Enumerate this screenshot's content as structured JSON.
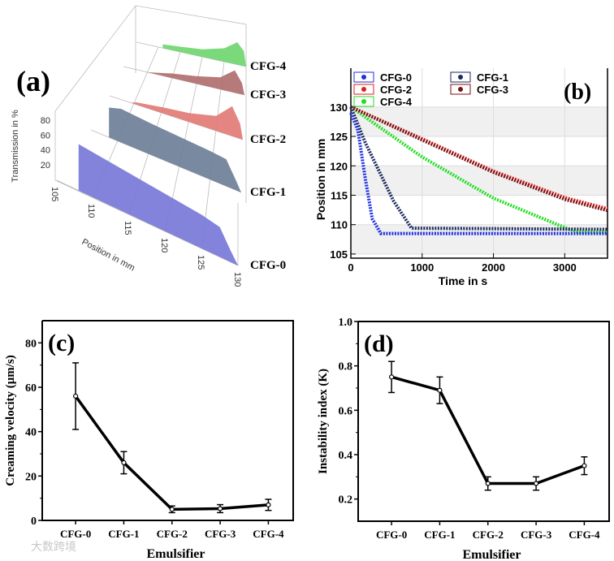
{
  "chart_data": [
    {
      "panel_label": "(a)",
      "type": "area",
      "title": "",
      "xlabel": "Position in mm",
      "ylabel": "Transmission in %",
      "x_ticks": [
        "105",
        "110",
        "115",
        "120",
        "125",
        "130"
      ],
      "y_ticks": [
        "20",
        "40",
        "60",
        "80"
      ],
      "xlim": [
        105,
        130
      ],
      "series": [
        {
          "name": "CFG-0",
          "color": "#7878d8",
          "x": [
            108,
            110,
            115,
            120,
            125,
            127.5,
            129,
            130
          ],
          "values": [
            62,
            60,
            55,
            50,
            45,
            40,
            15,
            0
          ]
        },
        {
          "name": "CFG-1",
          "color": "#6e7f98",
          "x": [
            108,
            110,
            115,
            120,
            125,
            127.5,
            129,
            130
          ],
          "values": [
            40,
            45,
            42,
            40,
            38,
            36,
            15,
            0
          ]
        },
        {
          "name": "CFG-2",
          "color": "#e27b76",
          "x": [
            109,
            110,
            115,
            120,
            125,
            128,
            129.5,
            130
          ],
          "values": [
            0,
            3,
            8,
            12,
            20,
            40,
            20,
            0
          ]
        },
        {
          "name": "CFG-3",
          "color": "#b16f6f",
          "x": [
            110,
            115,
            120,
            125,
            128,
            129.5,
            130
          ],
          "values": [
            0,
            6,
            10,
            16,
            30,
            15,
            0
          ]
        },
        {
          "name": "CFG-4",
          "color": "#6fd66f",
          "x": [
            111,
            115,
            120,
            125,
            128,
            129.5,
            130
          ],
          "values": [
            5,
            7,
            10,
            18,
            30,
            20,
            0
          ]
        }
      ]
    },
    {
      "panel_label": "(b)",
      "type": "scatter",
      "title": "",
      "xlabel": "Time in s",
      "ylabel": "Position in mm",
      "xlim": [
        0,
        3600
      ],
      "ylim": [
        104.3,
        136.6
      ],
      "x_ticks": [
        0,
        1000,
        2000,
        3000
      ],
      "y_ticks": [
        105,
        110,
        115,
        120,
        125,
        130
      ],
      "grid": true,
      "legend": "top",
      "series": [
        {
          "name": "CFG-0",
          "marker": "diamond",
          "color": "#1f2fe0",
          "x": [
            0,
            100,
            200,
            300,
            420,
            3600
          ],
          "values": [
            129,
            126,
            118,
            111,
            108.5,
            108.5
          ]
        },
        {
          "name": "CFG-1",
          "marker": "triangle-up",
          "color": "#1c2b5e",
          "x": [
            0,
            200,
            400,
            600,
            850,
            3600
          ],
          "values": [
            130,
            124,
            119,
            114,
            109.4,
            109.2
          ]
        },
        {
          "name": "CFG-2",
          "marker": "square",
          "color": "#e01c1c",
          "x": [
            0,
            1000,
            2000,
            3000,
            3600
          ],
          "values": [
            130,
            124.6,
            119.1,
            114.6,
            112.7
          ]
        },
        {
          "name": "CFG-3",
          "marker": "triangle-down",
          "color": "#7a1212",
          "x": [
            0,
            1000,
            2000,
            3000,
            3600
          ],
          "values": [
            130,
            124.4,
            118.9,
            114.3,
            112.4
          ]
        },
        {
          "name": "CFG-4",
          "marker": "x",
          "color": "#22dd22",
          "x": [
            0,
            1000,
            2000,
            3000,
            3200,
            3600
          ],
          "values": [
            130,
            121.5,
            114.5,
            109.5,
            108.7,
            108.7
          ]
        }
      ]
    },
    {
      "panel_label": "(c)",
      "type": "line",
      "title": "",
      "xlabel": "Emulsifier",
      "ylabel": "Creaming velocity (μm/s)",
      "categories": [
        "CFG-0",
        "CFG-1",
        "CFG-2",
        "CFG-3",
        "CFG-4"
      ],
      "values": [
        56,
        26,
        5,
        5.3,
        7
      ],
      "errors": [
        15,
        5,
        1.5,
        1.8,
        2.5
      ],
      "ylim": [
        0,
        90
      ],
      "y_ticks": [
        0,
        20,
        40,
        60,
        80
      ],
      "y_tick_labels": [
        "0",
        "20",
        "40",
        "60",
        "80"
      ]
    },
    {
      "panel_label": "(d)",
      "type": "line",
      "title": "",
      "xlabel": "Emulsifier",
      "ylabel": "Instability index (K)",
      "categories": [
        "CFG-0",
        "CFG-1",
        "CFG-2",
        "CFG-3",
        "CFG-4"
      ],
      "values": [
        0.75,
        0.69,
        0.27,
        0.27,
        0.35
      ],
      "errors": [
        0.07,
        0.06,
        0.03,
        0.03,
        0.04
      ],
      "ylim": [
        0.1,
        1.0
      ],
      "y_ticks": [
        0.2,
        0.4,
        0.6,
        0.8,
        1.0
      ],
      "y_tick_labels": [
        "0.2",
        "0.4",
        "0.6",
        "0.8",
        "1.0"
      ]
    }
  ],
  "watermark": "大数跨境"
}
